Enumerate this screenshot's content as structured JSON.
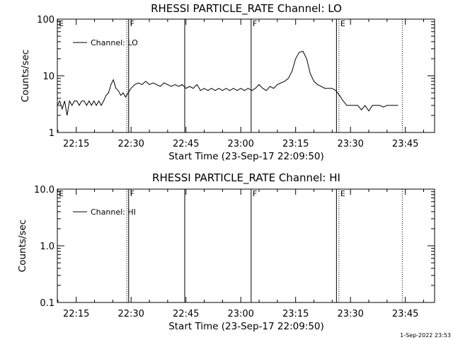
{
  "footer": {
    "timestamp": "1-Sep-2022 23:53"
  },
  "chart_data": [
    {
      "type": "line",
      "title": "RHESSI PARTICLE_RATE Channel: LO",
      "xlabel": "Start Time (23-Sep-17 22:09:50)",
      "ylabel": "Counts/sec",
      "yscale": "log",
      "ylim": [
        1,
        100
      ],
      "xlim": [
        "22:09:50",
        "23:53:00"
      ],
      "x_ticks": [
        "22:15",
        "22:30",
        "22:45",
        "23:00",
        "23:15",
        "23:30",
        "23:45"
      ],
      "y_ticks": [
        "1",
        "10",
        "100"
      ],
      "legend": {
        "label": "Channel: LO",
        "placement": "top-left"
      },
      "markers": [
        {
          "time": "22:09:50",
          "label": "E",
          "style": "solid"
        },
        {
          "time": "22:28:50",
          "label": "",
          "style": "dotted"
        },
        {
          "time": "22:29:20",
          "label": "F",
          "style": "solid"
        },
        {
          "time": "22:44:40",
          "label": "",
          "style": "solid"
        },
        {
          "time": "23:02:50",
          "label": "F",
          "style": "solid"
        },
        {
          "time": "23:26:10",
          "label": "",
          "style": "solid"
        },
        {
          "time": "23:26:50",
          "label": "E",
          "style": "dotted"
        },
        {
          "time": "23:44:10",
          "label": "",
          "style": "dotted"
        }
      ],
      "series": [
        {
          "name": "Channel: LO",
          "x": [
            "22:09:50",
            "22:10:30",
            "22:11:10",
            "22:11:50",
            "22:12:30",
            "22:13:10",
            "22:13:50",
            "22:14:30",
            "22:15:10",
            "22:15:50",
            "22:16:30",
            "22:17:10",
            "22:17:50",
            "22:18:30",
            "22:19:10",
            "22:19:50",
            "22:20:30",
            "22:21:10",
            "22:21:50",
            "22:22:30",
            "22:23:10",
            "22:23:50",
            "22:24:30",
            "22:25:10",
            "22:25:50",
            "22:26:30",
            "22:27:10",
            "22:27:50",
            "22:28:30",
            "22:29:10",
            "22:30:00",
            "22:31:00",
            "22:32:00",
            "22:33:00",
            "22:34:00",
            "22:35:00",
            "22:36:00",
            "22:37:00",
            "22:38:00",
            "22:39:00",
            "22:40:00",
            "22:41:00",
            "22:42:00",
            "22:43:00",
            "22:44:00",
            "22:45:00",
            "22:46:00",
            "22:47:00",
            "22:48:00",
            "22:49:00",
            "22:50:00",
            "22:51:00",
            "22:52:00",
            "22:53:00",
            "22:54:00",
            "22:55:00",
            "22:56:00",
            "22:57:00",
            "22:58:00",
            "22:59:00",
            "23:00:00",
            "23:01:00",
            "23:02:00",
            "23:03:00",
            "23:04:00",
            "23:05:00",
            "23:06:00",
            "23:07:00",
            "23:08:00",
            "23:09:00",
            "23:10:00",
            "23:11:00",
            "23:12:00",
            "23:13:00",
            "23:14:00",
            "23:15:00",
            "23:16:00",
            "23:17:00",
            "23:18:00",
            "23:19:00",
            "23:20:00",
            "23:21:00",
            "23:22:00",
            "23:23:00",
            "23:24:00",
            "23:25:00",
            "23:26:00",
            "23:27:00",
            "23:28:00",
            "23:29:00",
            "23:30:00",
            "23:31:00",
            "23:32:00",
            "23:33:00",
            "23:34:00",
            "23:35:00",
            "23:36:00",
            "23:37:00",
            "23:38:00",
            "23:39:00",
            "23:40:00",
            "23:41:00",
            "23:42:00",
            "23:43:00"
          ],
          "y": [
            3.0,
            3.6,
            2.6,
            3.6,
            2.0,
            3.6,
            3.0,
            3.6,
            3.6,
            3.0,
            3.6,
            3.6,
            3.0,
            3.6,
            3.0,
            3.6,
            3.0,
            3.6,
            3.0,
            3.6,
            4.5,
            5.0,
            7.0,
            8.5,
            6.0,
            5.5,
            4.5,
            5.0,
            4.2,
            5.0,
            6.0,
            7.0,
            7.5,
            7.0,
            8.0,
            7.0,
            7.5,
            7.0,
            6.5,
            7.5,
            7.0,
            6.5,
            7.0,
            6.5,
            7.0,
            6.0,
            6.5,
            6.0,
            7.0,
            5.5,
            6.0,
            5.5,
            6.0,
            5.5,
            6.0,
            5.5,
            6.0,
            5.5,
            6.0,
            5.5,
            6.0,
            5.5,
            6.0,
            5.5,
            6.0,
            7.0,
            6.0,
            5.5,
            6.5,
            6.0,
            7.0,
            7.5,
            8.0,
            9.0,
            12.0,
            20.0,
            26.0,
            27.0,
            20.0,
            11.0,
            8.0,
            7.0,
            6.5,
            6.0,
            6.0,
            6.0,
            5.5,
            4.5,
            3.6,
            3.0,
            3.0,
            3.0,
            3.0,
            2.5,
            3.0,
            2.4,
            3.0,
            3.0,
            3.0,
            2.8,
            3.0,
            3.0,
            3.0,
            3.0
          ]
        }
      ]
    },
    {
      "type": "line",
      "title": "RHESSI PARTICLE_RATE Channel: HI",
      "xlabel": "Start Time (23-Sep-17 22:09:50)",
      "ylabel": "Counts/sec",
      "yscale": "log",
      "ylim": [
        0.1,
        10.0
      ],
      "xlim": [
        "22:09:50",
        "23:53:00"
      ],
      "x_ticks": [
        "22:15",
        "22:30",
        "22:45",
        "23:00",
        "23:15",
        "23:30",
        "23:45"
      ],
      "y_ticks": [
        "0.1",
        "1.0",
        "10.0"
      ],
      "legend": {
        "label": "Channel: HI",
        "placement": "top-left"
      },
      "markers": [
        {
          "time": "22:09:50",
          "label": "E",
          "style": "solid"
        },
        {
          "time": "22:28:50",
          "label": "",
          "style": "dotted"
        },
        {
          "time": "22:29:20",
          "label": "F",
          "style": "solid"
        },
        {
          "time": "22:44:40",
          "label": "",
          "style": "solid"
        },
        {
          "time": "23:02:50",
          "label": "F",
          "style": "solid"
        },
        {
          "time": "23:26:10",
          "label": "",
          "style": "solid"
        },
        {
          "time": "23:26:50",
          "label": "E",
          "style": "dotted"
        },
        {
          "time": "23:44:10",
          "label": "",
          "style": "dotted"
        }
      ],
      "series": [
        {
          "name": "Channel: HI",
          "x": [],
          "y": []
        }
      ]
    }
  ]
}
